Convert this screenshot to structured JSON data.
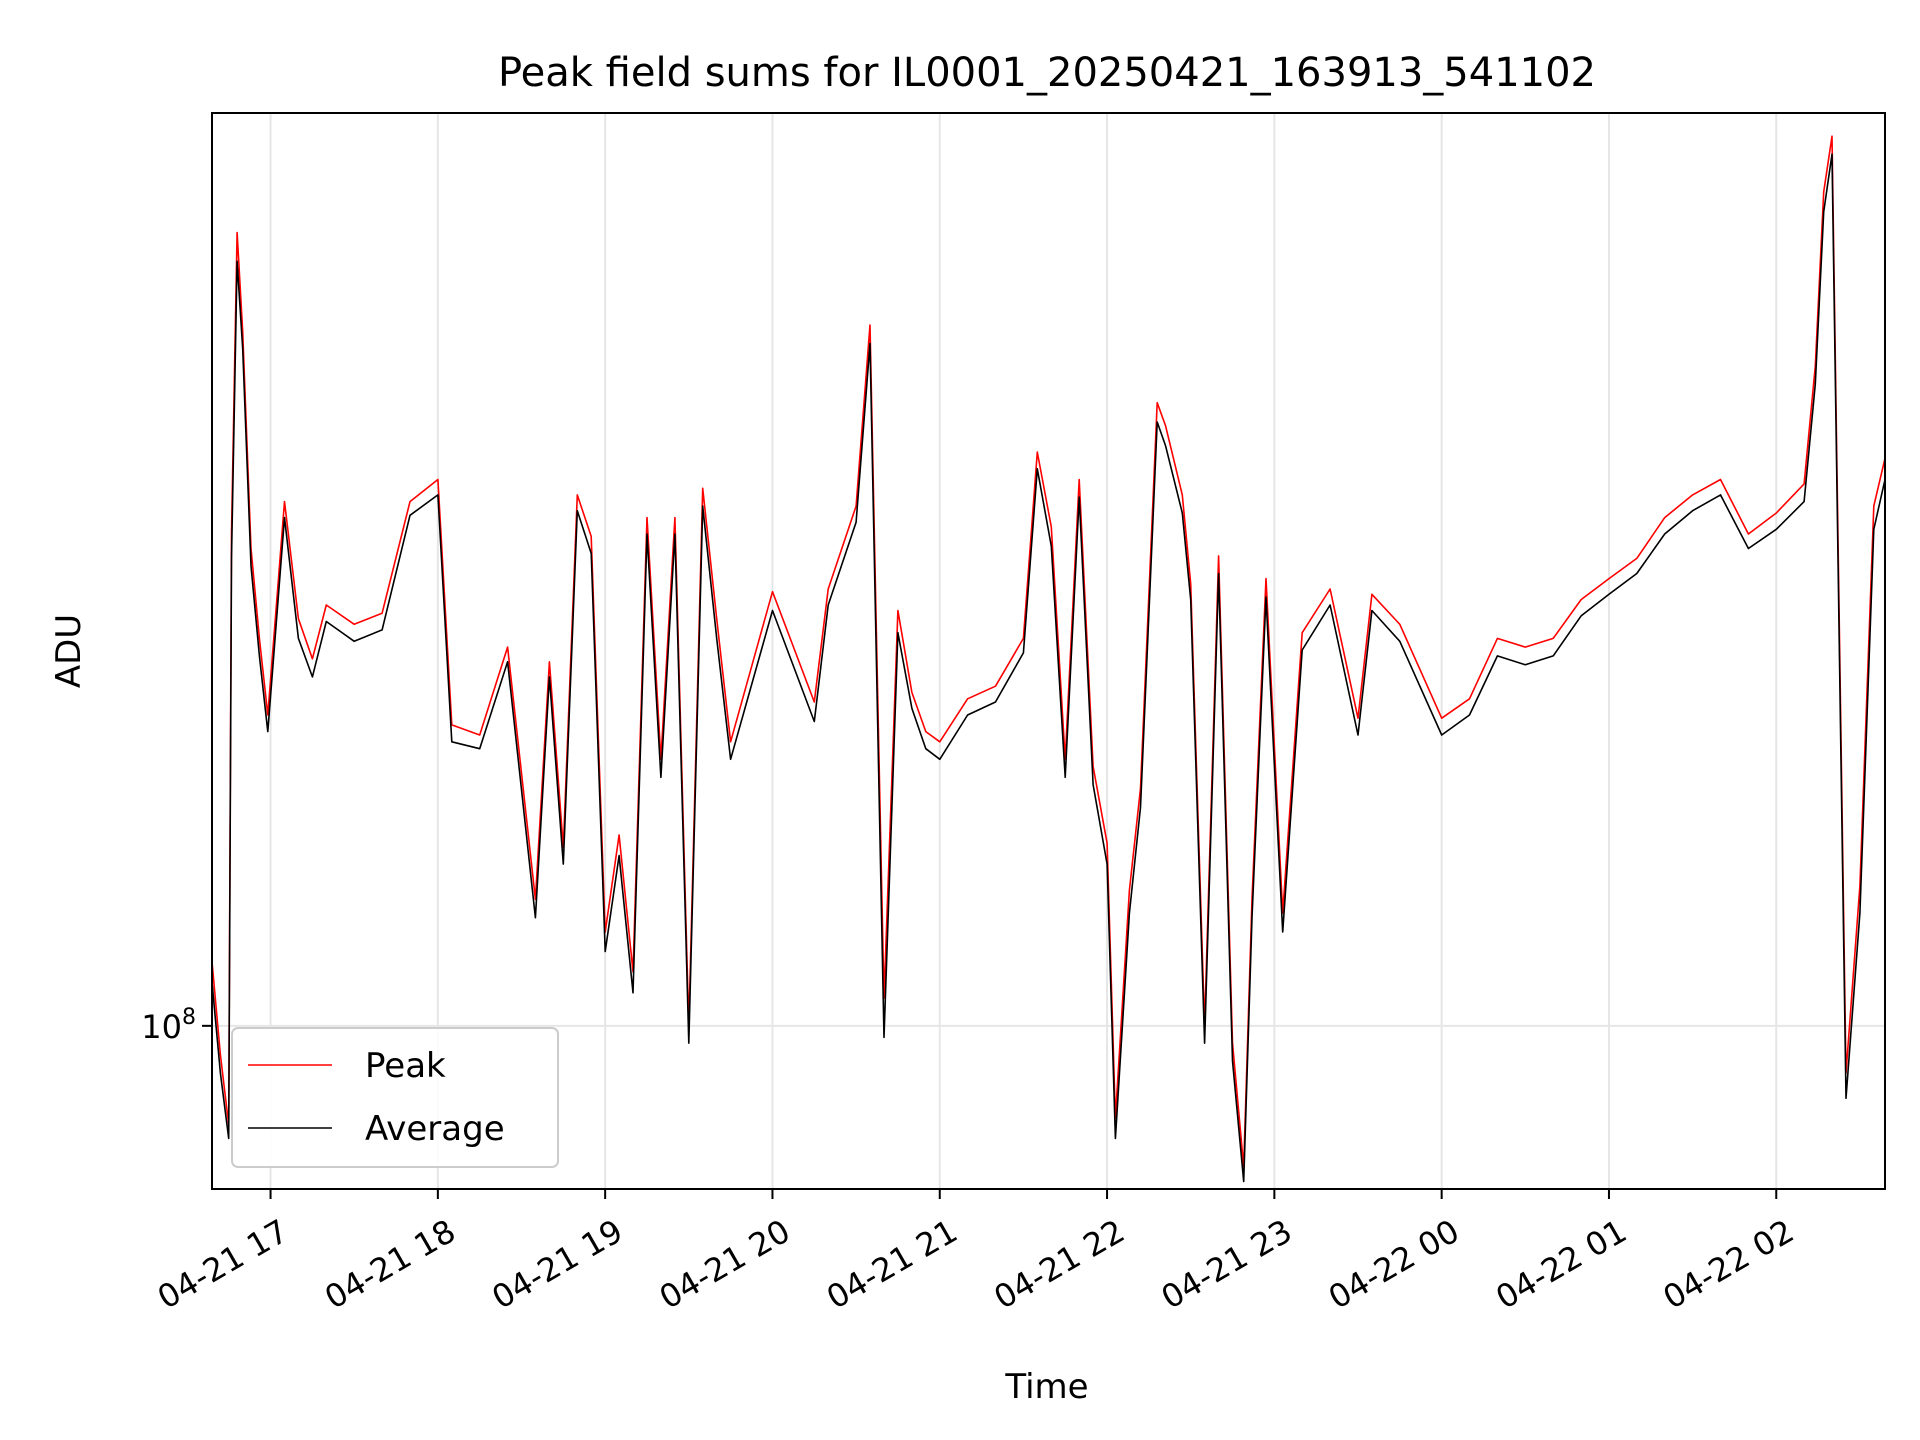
{
  "chart_data": {
    "type": "line",
    "title": "Peak field sums for IL0001_20250421_163913_541102",
    "xlabel": "Time",
    "ylabel": "ADU",
    "y_scale": "log",
    "y_tick_label": "10",
    "y_tick_exponent": "8",
    "y_tick_value": 100000000,
    "x_range": [
      "2025-04-21 16:39",
      "2025-04-22 02:39"
    ],
    "ylim": [
      75000000,
      500000000
    ],
    "grid": true,
    "legend_position": "lower-left",
    "x_tick_labels": [
      "04-21 17",
      "04-21 18",
      "04-21 19",
      "04-21 20",
      "04-21 21",
      "04-21 22",
      "04-21 23",
      "04-22 00",
      "04-22 01",
      "04-22 02"
    ],
    "x_tick_times": [
      "2025-04-21 17:00",
      "2025-04-21 18:00",
      "2025-04-21 19:00",
      "2025-04-21 20:00",
      "2025-04-21 21:00",
      "2025-04-21 22:00",
      "2025-04-21 23:00",
      "2025-04-22 00:00",
      "2025-04-22 01:00",
      "2025-04-22 02:00"
    ],
    "series": [
      {
        "name": "Peak",
        "color": "#ff0000",
        "x": [
          "2025-04-21 16:39",
          "2025-04-21 16:42",
          "2025-04-21 16:45",
          "2025-04-21 16:46",
          "2025-04-21 16:48",
          "2025-04-21 16:50",
          "2025-04-21 16:53",
          "2025-04-21 16:56",
          "2025-04-21 16:59",
          "2025-04-21 17:05",
          "2025-04-21 17:10",
          "2025-04-21 17:15",
          "2025-04-21 17:20",
          "2025-04-21 17:30",
          "2025-04-21 17:40",
          "2025-04-21 17:50",
          "2025-04-21 18:00",
          "2025-04-21 18:05",
          "2025-04-21 18:15",
          "2025-04-21 18:25",
          "2025-04-21 18:35",
          "2025-04-21 18:40",
          "2025-04-21 18:45",
          "2025-04-21 18:50",
          "2025-04-21 18:55",
          "2025-04-21 19:00",
          "2025-04-21 19:05",
          "2025-04-21 19:10",
          "2025-04-21 19:15",
          "2025-04-21 19:20",
          "2025-04-21 19:25",
          "2025-04-21 19:30",
          "2025-04-21 19:35",
          "2025-04-21 19:40",
          "2025-04-21 19:45",
          "2025-04-21 20:00",
          "2025-04-21 20:15",
          "2025-04-21 20:20",
          "2025-04-21 20:30",
          "2025-04-21 20:35",
          "2025-04-21 20:40",
          "2025-04-21 20:45",
          "2025-04-21 20:50",
          "2025-04-21 20:55",
          "2025-04-21 21:00",
          "2025-04-21 21:10",
          "2025-04-21 21:20",
          "2025-04-21 21:30",
          "2025-04-21 21:35",
          "2025-04-21 21:40",
          "2025-04-21 21:45",
          "2025-04-21 21:50",
          "2025-04-21 21:55",
          "2025-04-21 22:00",
          "2025-04-21 22:03",
          "2025-04-21 22:08",
          "2025-04-21 22:12",
          "2025-04-21 22:18",
          "2025-04-21 22:21",
          "2025-04-21 22:27",
          "2025-04-21 22:30",
          "2025-04-21 22:35",
          "2025-04-21 22:40",
          "2025-04-21 22:45",
          "2025-04-21 22:49",
          "2025-04-21 22:52",
          "2025-04-21 22:57",
          "2025-04-21 23:03",
          "2025-04-21 23:10",
          "2025-04-21 23:20",
          "2025-04-21 23:30",
          "2025-04-21 23:35",
          "2025-04-21 23:45",
          "2025-04-22 00:00",
          "2025-04-22 00:10",
          "2025-04-22 00:20",
          "2025-04-22 00:30",
          "2025-04-22 00:40",
          "2025-04-22 00:50",
          "2025-04-22 01:00",
          "2025-04-22 01:10",
          "2025-04-22 01:20",
          "2025-04-22 01:30",
          "2025-04-22 01:40",
          "2025-04-22 01:50",
          "2025-04-22 02:00",
          "2025-04-22 02:10",
          "2025-04-22 02:14",
          "2025-04-22 02:17",
          "2025-04-22 02:20",
          "2025-04-22 02:25",
          "2025-04-22 02:30",
          "2025-04-22 02:35",
          "2025-04-22 02:39"
        ],
        "values": [
          112000000,
          95000000,
          84000000,
          238000000,
          405000000,
          340000000,
          232000000,
          198000000,
          173000000,
          252000000,
          205000000,
          191000000,
          210000000,
          203000000,
          207000000,
          252000000,
          262000000,
          170000000,
          167000000,
          195000000,
          125000000,
          190000000,
          137000000,
          255000000,
          237000000,
          118000000,
          140000000,
          110000000,
          245000000,
          160000000,
          245000000,
          100000000,
          258000000,
          205000000,
          165000000,
          215000000,
          177000000,
          216000000,
          250000000,
          344000000,
          105000000,
          208000000,
          180000000,
          168000000,
          165000000,
          178000000,
          182000000,
          198000000,
          275000000,
          241000000,
          160000000,
          262000000,
          158000000,
          138000000,
          85000000,
          127000000,
          152000000,
          300000000,
          288000000,
          255000000,
          218000000,
          100000000,
          229000000,
          97000000,
          78000000,
          125000000,
          220000000,
          122000000,
          200000000,
          216000000,
          172000000,
          214000000,
          203000000,
          172000000,
          178000000,
          198000000,
          195000000,
          198000000,
          212000000,
          220000000,
          228000000,
          245000000,
          255000000,
          262000000,
          238000000,
          247000000,
          260000000,
          320000000,
          435000000,
          480000000,
          92000000,
          128000000,
          250000000,
          272000000
        ]
      },
      {
        "name": "Average",
        "color": "#000000",
        "x": [
          "2025-04-21 16:39",
          "2025-04-21 16:42",
          "2025-04-21 16:45",
          "2025-04-21 16:46",
          "2025-04-21 16:48",
          "2025-04-21 16:50",
          "2025-04-21 16:53",
          "2025-04-21 16:56",
          "2025-04-21 16:59",
          "2025-04-21 17:05",
          "2025-04-21 17:10",
          "2025-04-21 17:15",
          "2025-04-21 17:20",
          "2025-04-21 17:30",
          "2025-04-21 17:40",
          "2025-04-21 17:50",
          "2025-04-21 18:00",
          "2025-04-21 18:05",
          "2025-04-21 18:15",
          "2025-04-21 18:25",
          "2025-04-21 18:35",
          "2025-04-21 18:40",
          "2025-04-21 18:45",
          "2025-04-21 18:50",
          "2025-04-21 18:55",
          "2025-04-21 19:00",
          "2025-04-21 19:05",
          "2025-04-21 19:10",
          "2025-04-21 19:15",
          "2025-04-21 19:20",
          "2025-04-21 19:25",
          "2025-04-21 19:30",
          "2025-04-21 19:35",
          "2025-04-21 19:40",
          "2025-04-21 19:45",
          "2025-04-21 20:00",
          "2025-04-21 20:15",
          "2025-04-21 20:20",
          "2025-04-21 20:30",
          "2025-04-21 20:35",
          "2025-04-21 20:40",
          "2025-04-21 20:45",
          "2025-04-21 20:50",
          "2025-04-21 20:55",
          "2025-04-21 21:00",
          "2025-04-21 21:10",
          "2025-04-21 21:20",
          "2025-04-21 21:30",
          "2025-04-21 21:35",
          "2025-04-21 21:40",
          "2025-04-21 21:45",
          "2025-04-21 21:50",
          "2025-04-21 21:55",
          "2025-04-21 22:00",
          "2025-04-21 22:03",
          "2025-04-21 22:08",
          "2025-04-21 22:12",
          "2025-04-21 22:18",
          "2025-04-21 22:21",
          "2025-04-21 22:27",
          "2025-04-21 22:30",
          "2025-04-21 22:35",
          "2025-04-21 22:40",
          "2025-04-21 22:45",
          "2025-04-21 22:49",
          "2025-04-21 22:52",
          "2025-04-21 22:57",
          "2025-04-21 23:03",
          "2025-04-21 23:10",
          "2025-04-21 23:20",
          "2025-04-21 23:30",
          "2025-04-21 23:35",
          "2025-04-21 23:45",
          "2025-04-22 00:00",
          "2025-04-22 00:10",
          "2025-04-22 00:20",
          "2025-04-22 00:30",
          "2025-04-22 00:40",
          "2025-04-22 00:50",
          "2025-04-22 01:00",
          "2025-04-22 01:10",
          "2025-04-22 01:20",
          "2025-04-22 01:30",
          "2025-04-22 01:40",
          "2025-04-22 01:50",
          "2025-04-22 02:00",
          "2025-04-22 02:10",
          "2025-04-22 02:14",
          "2025-04-22 02:17",
          "2025-04-22 02:20",
          "2025-04-22 02:25",
          "2025-04-22 02:30",
          "2025-04-22 02:35",
          "2025-04-22 02:39"
        ],
        "values": [
          108000000,
          92000000,
          82000000,
          228000000,
          385000000,
          330000000,
          225000000,
          192000000,
          168000000,
          245000000,
          198000000,
          185000000,
          204000000,
          197000000,
          201000000,
          246000000,
          255000000,
          165000000,
          163000000,
          190000000,
          121000000,
          185000000,
          133000000,
          248000000,
          230000000,
          114000000,
          135000000,
          106000000,
          238000000,
          155000000,
          238000000,
          97000000,
          250000000,
          198000000,
          160000000,
          208000000,
          171000000,
          210000000,
          243000000,
          333000000,
          98000000,
          200000000,
          175000000,
          163000000,
          160000000,
          173000000,
          177000000,
          193000000,
          267000000,
          233000000,
          155000000,
          254000000,
          153000000,
          133000000,
          82000000,
          122000000,
          147000000,
          290000000,
          278000000,
          247000000,
          212000000,
          97000000,
          222000000,
          94000000,
          76000000,
          121000000,
          213000000,
          118000000,
          194000000,
          210000000,
          167000000,
          208000000,
          197000000,
          167000000,
          173000000,
          192000000,
          189000000,
          192000000,
          206000000,
          214000000,
          222000000,
          238000000,
          248000000,
          255000000,
          232000000,
          240000000,
          252000000,
          310000000,
          420000000,
          465000000,
          88000000,
          122000000,
          240000000,
          262000000
        ]
      }
    ]
  }
}
